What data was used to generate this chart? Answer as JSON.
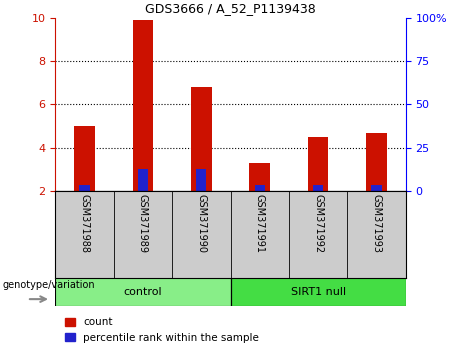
{
  "title": "GDS3666 / A_52_P1139438",
  "samples": [
    "GSM371988",
    "GSM371989",
    "GSM371990",
    "GSM371991",
    "GSM371992",
    "GSM371993"
  ],
  "count_values": [
    5.0,
    9.9,
    6.8,
    3.3,
    4.5,
    4.7
  ],
  "count_base": 2.0,
  "percentile_values": [
    2.3,
    3.0,
    3.0,
    2.3,
    2.3,
    2.3
  ],
  "percentile_base": 2.0,
  "ylim_left": [
    2,
    10
  ],
  "ylim_right": [
    0,
    100
  ],
  "yticks_left": [
    2,
    4,
    6,
    8,
    10
  ],
  "yticks_right": [
    0,
    25,
    50,
    75,
    100
  ],
  "ytick_labels_right": [
    "0",
    "25",
    "50",
    "75",
    "100%"
  ],
  "color_count": "#cc1100",
  "color_percentile": "#2222cc",
  "groups": [
    {
      "label": "control",
      "indices": [
        0,
        1,
        2
      ],
      "color": "#88ee88"
    },
    {
      "label": "SIRT1 null",
      "indices": [
        3,
        4,
        5
      ],
      "color": "#44dd44"
    }
  ],
  "group_label_prefix": "genotype/variation",
  "bar_width": 0.35,
  "tick_label_area_color": "#cccccc",
  "legend_items": [
    "count",
    "percentile rank within the sample"
  ]
}
